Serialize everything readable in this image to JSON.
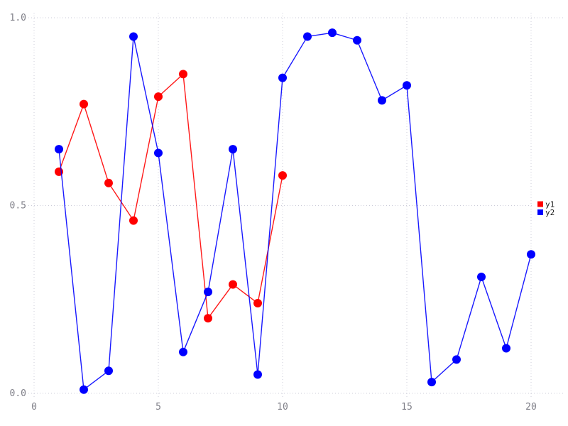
{
  "chart_data": {
    "type": "line",
    "title": "",
    "xlabel": "",
    "ylabel": "",
    "xlim": [
      0,
      20.5
    ],
    "ylim": [
      0.0,
      1.0
    ],
    "grid": true,
    "legend_position": "right-middle",
    "x_ticks": [
      0,
      5,
      10,
      15,
      20
    ],
    "x_tick_labels": [
      "0",
      "5",
      "10",
      "15",
      "20"
    ],
    "y_ticks": [
      0.0,
      0.5,
      1.0
    ],
    "y_tick_labels": [
      "0.0",
      "0.5",
      "1.0"
    ],
    "series": [
      {
        "name": "y1",
        "color": "#ff0000",
        "x": [
          1,
          2,
          3,
          4,
          5,
          6,
          7,
          8,
          9,
          10
        ],
        "values": [
          0.59,
          0.77,
          0.56,
          0.46,
          0.79,
          0.85,
          0.2,
          0.29,
          0.24,
          0.58
        ]
      },
      {
        "name": "y2",
        "color": "#0000ff",
        "x": [
          1,
          2,
          3,
          4,
          5,
          6,
          7,
          8,
          9,
          10,
          11,
          12,
          13,
          14,
          15,
          16,
          17,
          18,
          19,
          20
        ],
        "values": [
          0.65,
          0.01,
          0.06,
          0.95,
          0.64,
          0.11,
          0.27,
          0.65,
          0.05,
          0.84,
          0.95,
          0.96,
          0.94,
          0.78,
          0.82,
          0.03,
          0.09,
          0.31,
          0.12,
          0.37
        ]
      }
    ]
  },
  "colors": {
    "background": "#ffffff",
    "grid": "#ccccd9",
    "tick_label": "#7f7f88",
    "legend_text": "#1a1a1a",
    "legend_background": "#ffffff"
  }
}
